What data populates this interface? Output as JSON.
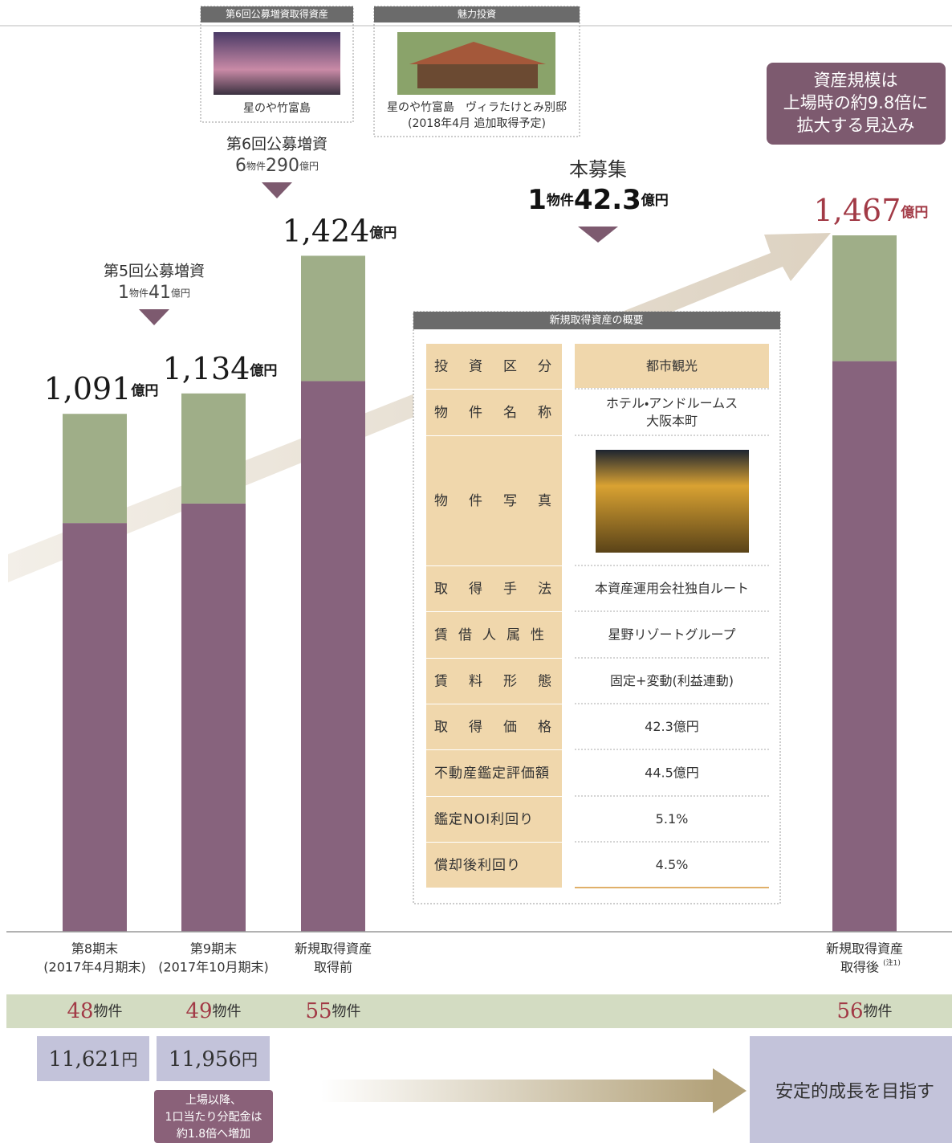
{
  "acquired_box": {
    "title": "第6回公募増資取得資産",
    "caption": "星のや竹富島"
  },
  "invest_box": {
    "title": "魅力投資",
    "caption": [
      "星のや竹富島　ヴィラたけとみ別邸",
      "(2018年4月 追加取得予定)"
    ]
  },
  "callout": [
    "資産規模は",
    "上場時の約9.8倍に",
    "拡大する見込み"
  ],
  "offerings": [
    {
      "title": "第5回公募増資",
      "count": 1,
      "count_unit": "物件",
      "amount": 41,
      "amount_unit": "億円"
    },
    {
      "title": "第6回公募増資",
      "count": 6,
      "count_unit": "物件",
      "amount": 290,
      "amount_unit": "億円"
    },
    {
      "title": "本募集",
      "count": 1,
      "count_unit": "物件",
      "amount": 42.3,
      "amount_unit": "億円"
    }
  ],
  "chart_data": {
    "type": "bar",
    "stacked": true,
    "categories": [
      [
        "第8期末",
        "(2017年4月期末)"
      ],
      [
        "第9期末",
        "(2017年10月期末)"
      ],
      [
        "新規取得資産",
        "取得前"
      ],
      [
        "新規取得資産",
        "取得後"
      ]
    ],
    "category_note": "(注1)",
    "series": [
      {
        "color": "#87637d",
        "values": [
          861,
          902,
          1160,
          1202
        ]
      },
      {
        "color": "#9fae88",
        "values": [
          230,
          232,
          264,
          265
        ]
      }
    ],
    "totals": [
      1091,
      1134,
      1424,
      1467
    ],
    "total_labels": [
      "1,091",
      "1,134",
      "1,424",
      "1,467"
    ],
    "total_unit": "億円"
  },
  "property_counts": {
    "values": [
      48,
      49,
      55,
      56
    ],
    "unit": "物件"
  },
  "distributions": {
    "values": [
      11621,
      11956
    ],
    "value_labels": [
      "11,621",
      "11,956"
    ],
    "unit": "円"
  },
  "distribution_note": [
    "上場以降、",
    "1口当たり分配金は",
    "約1.8倍へ増加"
  ],
  "goal": "安定的成長を目指す",
  "table": {
    "title": "新規取得資産の概要",
    "rows": [
      {
        "label": "投資区分",
        "value": [
          "都市観光"
        ]
      },
      {
        "label": "物件名称",
        "value": [
          "ホテル・アンドルームス",
          "大阪本町"
        ]
      },
      {
        "label": "物件写真"
      },
      {
        "label": "取得手法",
        "value": [
          "本資産運用会社独自ルート"
        ]
      },
      {
        "label": "賃借人属性",
        "value": [
          "星野リゾートグループ"
        ]
      },
      {
        "label": "賃料形態",
        "value": [
          "固定+変動(利益連動)"
        ]
      },
      {
        "label": "取得価格",
        "value": [
          "42.3億円"
        ]
      },
      {
        "label": "不動産鑑定評価額",
        "value": [
          "44.5億円"
        ]
      },
      {
        "label": "鑑定NOI利回り",
        "value": [
          "5.1%"
        ]
      },
      {
        "label": "償却後利回り",
        "value": [
          "4.5%"
        ]
      }
    ]
  }
}
